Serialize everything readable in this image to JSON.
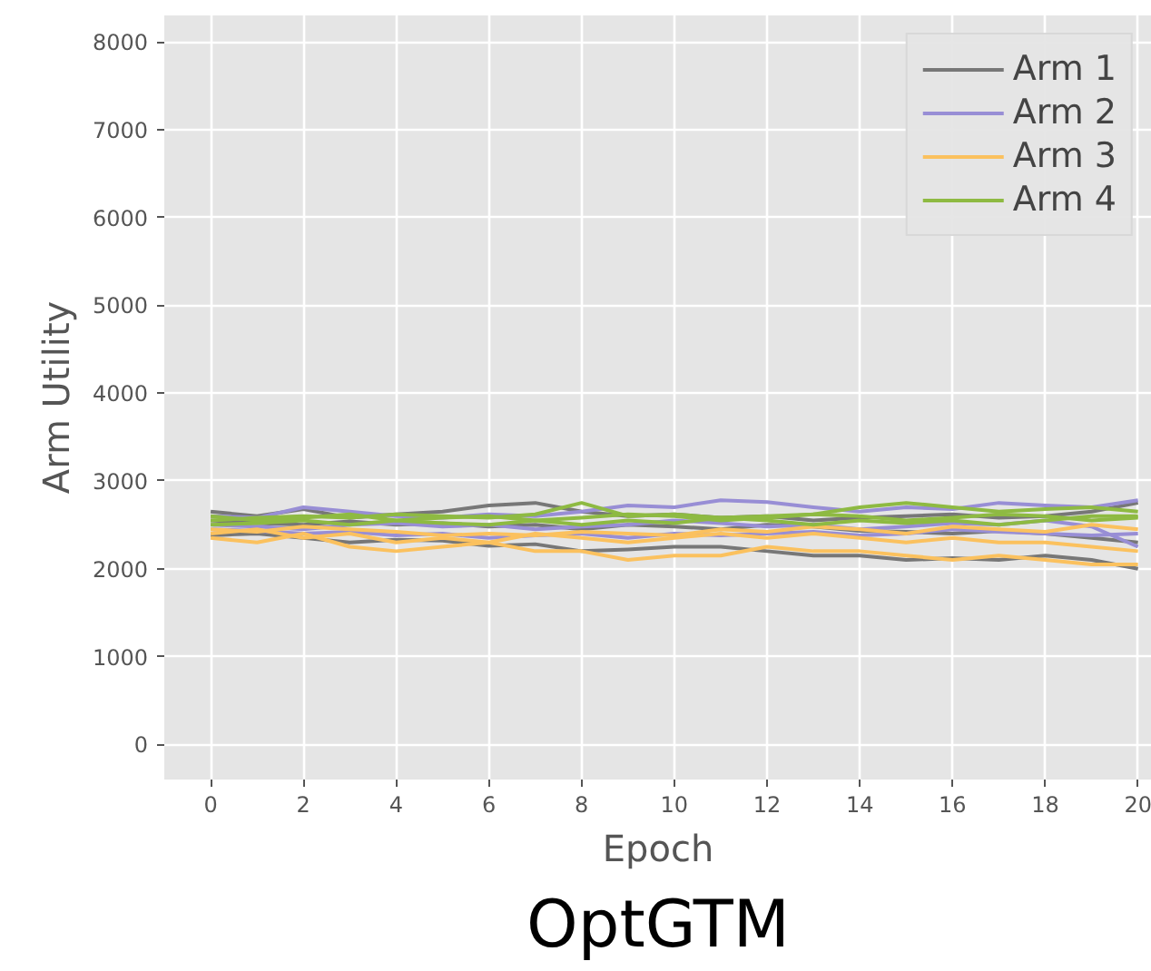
{
  "chart_data": {
    "type": "line",
    "title": "OptGTM",
    "xlabel": "Epoch",
    "ylabel": "Arm Utility",
    "x": [
      0,
      1,
      2,
      3,
      4,
      5,
      6,
      7,
      8,
      9,
      10,
      11,
      12,
      13,
      14,
      15,
      16,
      17,
      18,
      19,
      20
    ],
    "xlim": [
      -1,
      20.3
    ],
    "xticks": [
      0,
      2,
      4,
      6,
      8,
      10,
      12,
      14,
      16,
      18,
      20
    ],
    "ylim": [
      -400,
      8300
    ],
    "yticks": [
      0,
      1000,
      2000,
      3000,
      4000,
      5000,
      6000,
      7000,
      8000
    ],
    "grid": true,
    "legend": "top right",
    "marker": "none",
    "line_style": "solid",
    "series": [
      {
        "name": "Arm 1",
        "color": "#777777",
        "values": [
          2650,
          2600,
          2680,
          2580,
          2620,
          2650,
          2720,
          2750,
          2650,
          2600,
          2620,
          2580,
          2600,
          2550,
          2580,
          2600,
          2620,
          2580,
          2600,
          2650,
          2750
        ]
      },
      {
        "color": "#777777",
        "values": [
          2380,
          2400,
          2350,
          2300,
          2330,
          2320,
          2260,
          2280,
          2200,
          2220,
          2250,
          2250,
          2200,
          2150,
          2150,
          2100,
          2120,
          2100,
          2150,
          2100,
          2000
        ]
      },
      {
        "color": "#777777",
        "values": [
          2550,
          2520,
          2500,
          2540,
          2500,
          2520,
          2480,
          2500,
          2450,
          2500,
          2480,
          2450,
          2500,
          2480,
          2430,
          2420,
          2400,
          2430,
          2400,
          2350,
          2300
        ]
      },
      {
        "name": "Arm 2",
        "color": "#988ed5",
        "values": [
          2600,
          2580,
          2700,
          2650,
          2600,
          2580,
          2620,
          2600,
          2650,
          2720,
          2700,
          2780,
          2760,
          2700,
          2650,
          2700,
          2680,
          2750,
          2720,
          2700,
          2780
        ]
      },
      {
        "color": "#988ed5",
        "values": [
          2500,
          2480,
          2450,
          2500,
          2520,
          2480,
          2500,
          2450,
          2480,
          2500,
          2550,
          2520,
          2480,
          2500,
          2450,
          2480,
          2520,
          2500,
          2550,
          2480,
          2250
        ]
      },
      {
        "color": "#988ed5",
        "values": [
          2450,
          2430,
          2400,
          2420,
          2380,
          2400,
          2350,
          2380,
          2400,
          2350,
          2400,
          2380,
          2400,
          2420,
          2380,
          2400,
          2450,
          2420,
          2400,
          2380,
          2400
        ]
      },
      {
        "name": "Arm 3",
        "color": "#fbc15e",
        "values": [
          2350,
          2300,
          2400,
          2250,
          2200,
          2250,
          2300,
          2200,
          2200,
          2100,
          2150,
          2150,
          2250,
          2200,
          2200,
          2150,
          2100,
          2150,
          2100,
          2050,
          2050
        ]
      },
      {
        "color": "#fbc15e",
        "values": [
          2400,
          2450,
          2350,
          2400,
          2300,
          2350,
          2300,
          2400,
          2350,
          2300,
          2350,
          2400,
          2350,
          2400,
          2350,
          2300,
          2350,
          2300,
          2300,
          2250,
          2200
        ]
      },
      {
        "color": "#fbc15e",
        "values": [
          2450,
          2420,
          2480,
          2450,
          2420,
          2380,
          2400,
          2380,
          2420,
          2400,
          2380,
          2450,
          2420,
          2480,
          2450,
          2400,
          2480,
          2450,
          2420,
          2500,
          2450
        ]
      },
      {
        "name": "Arm 4",
        "color": "#8eba42",
        "values": [
          2550,
          2580,
          2600,
          2580,
          2620,
          2600,
          2580,
          2620,
          2750,
          2600,
          2620,
          2580,
          2600,
          2620,
          2700,
          2750,
          2700,
          2650,
          2680,
          2700,
          2650
        ]
      },
      {
        "color": "#8eba42",
        "values": [
          2500,
          2520,
          2550,
          2500,
          2550,
          2520,
          2500,
          2550,
          2500,
          2550,
          2520,
          2580,
          2550,
          2500,
          2550,
          2520,
          2550,
          2500,
          2550,
          2600,
          2600
        ]
      },
      {
        "color": "#8eba42",
        "values": [
          2600,
          2550,
          2580,
          2620,
          2550,
          2580,
          2600,
          2550,
          2580,
          2620,
          2600,
          2550,
          2580,
          2620,
          2600,
          2550,
          2580,
          2620,
          2600,
          2550,
          2580
        ]
      }
    ]
  }
}
